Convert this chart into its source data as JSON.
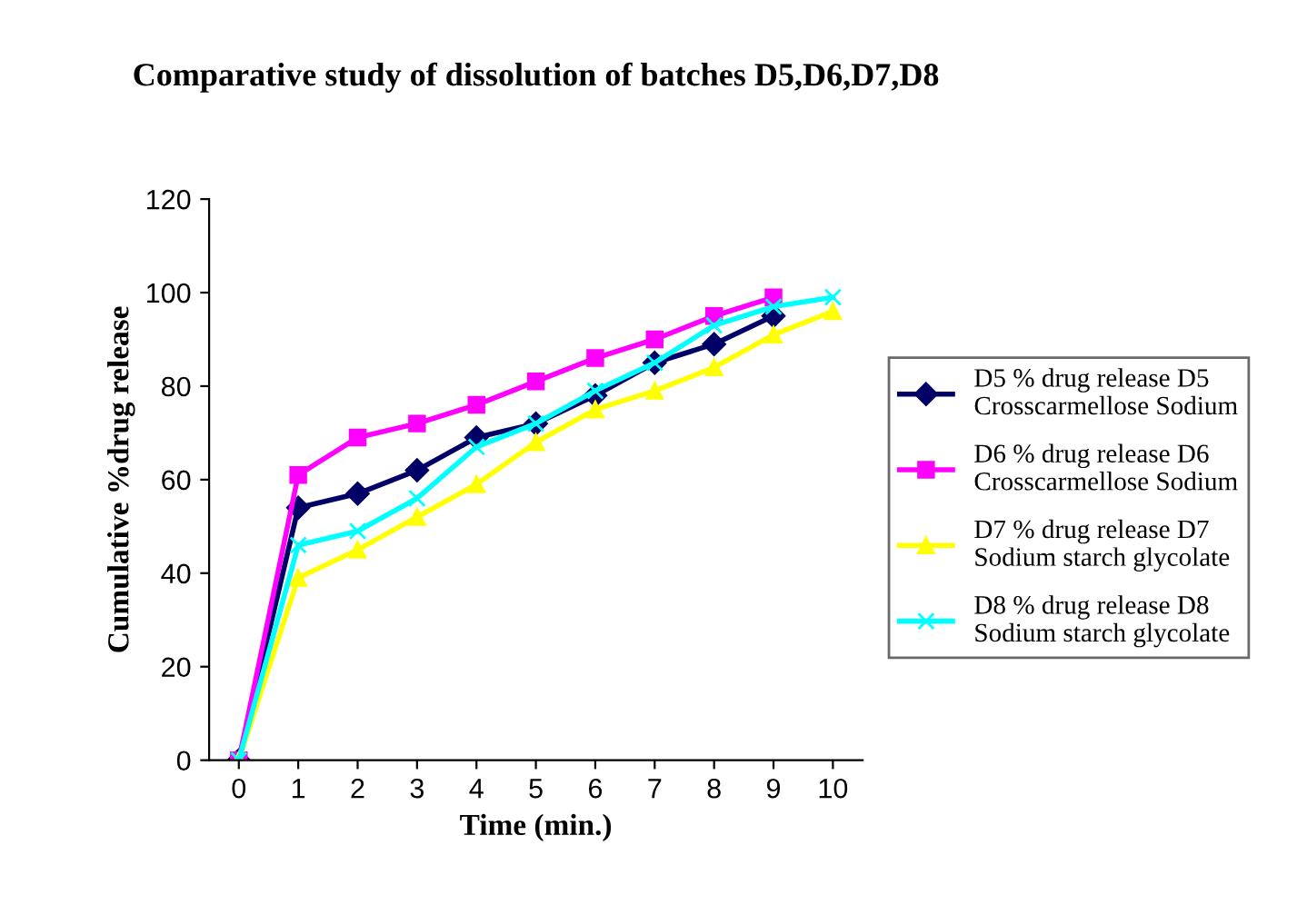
{
  "chart_data": {
    "type": "line",
    "title": "Comparative study of dissolution of batches D5,D6,D7,D8",
    "xlabel": "Time (min.)",
    "ylabel": "Cumulative %drug release",
    "categories": [
      "0",
      "1",
      "2",
      "3",
      "4",
      "5",
      "6",
      "7",
      "8",
      "9",
      "10"
    ],
    "series": [
      {
        "name": "D5 % drug release D5\nCrosscarmellose Sodium",
        "color": "#000066",
        "marker": "diamond",
        "values": [
          0,
          54,
          57,
          62,
          69,
          72,
          78,
          85,
          89,
          95,
          null
        ]
      },
      {
        "name": "D6 % drug release D6\nCrosscarmellose Sodium",
        "color": "#ff00ff",
        "marker": "square",
        "values": [
          0,
          61,
          69,
          72,
          76,
          81,
          86,
          90,
          95,
          99,
          null
        ]
      },
      {
        "name": "D7 % drug release D7\nSodium starch glycolate",
        "color": "#ffff00",
        "marker": "triangle",
        "values": [
          0,
          39,
          45,
          52,
          59,
          68,
          75,
          79,
          84,
          91,
          96
        ]
      },
      {
        "name": "D8 % drug release D8\nSodium starch glycolate",
        "color": "#00ffff",
        "marker": "cross",
        "values": [
          0,
          46,
          49,
          56,
          67,
          72,
          79,
          85,
          93,
          97,
          99
        ]
      }
    ],
    "ylim": [
      0,
      120
    ],
    "yticks": [
      0,
      20,
      40,
      60,
      80,
      100,
      120
    ],
    "grid": false,
    "legend": "right",
    "line_style": "solid"
  }
}
